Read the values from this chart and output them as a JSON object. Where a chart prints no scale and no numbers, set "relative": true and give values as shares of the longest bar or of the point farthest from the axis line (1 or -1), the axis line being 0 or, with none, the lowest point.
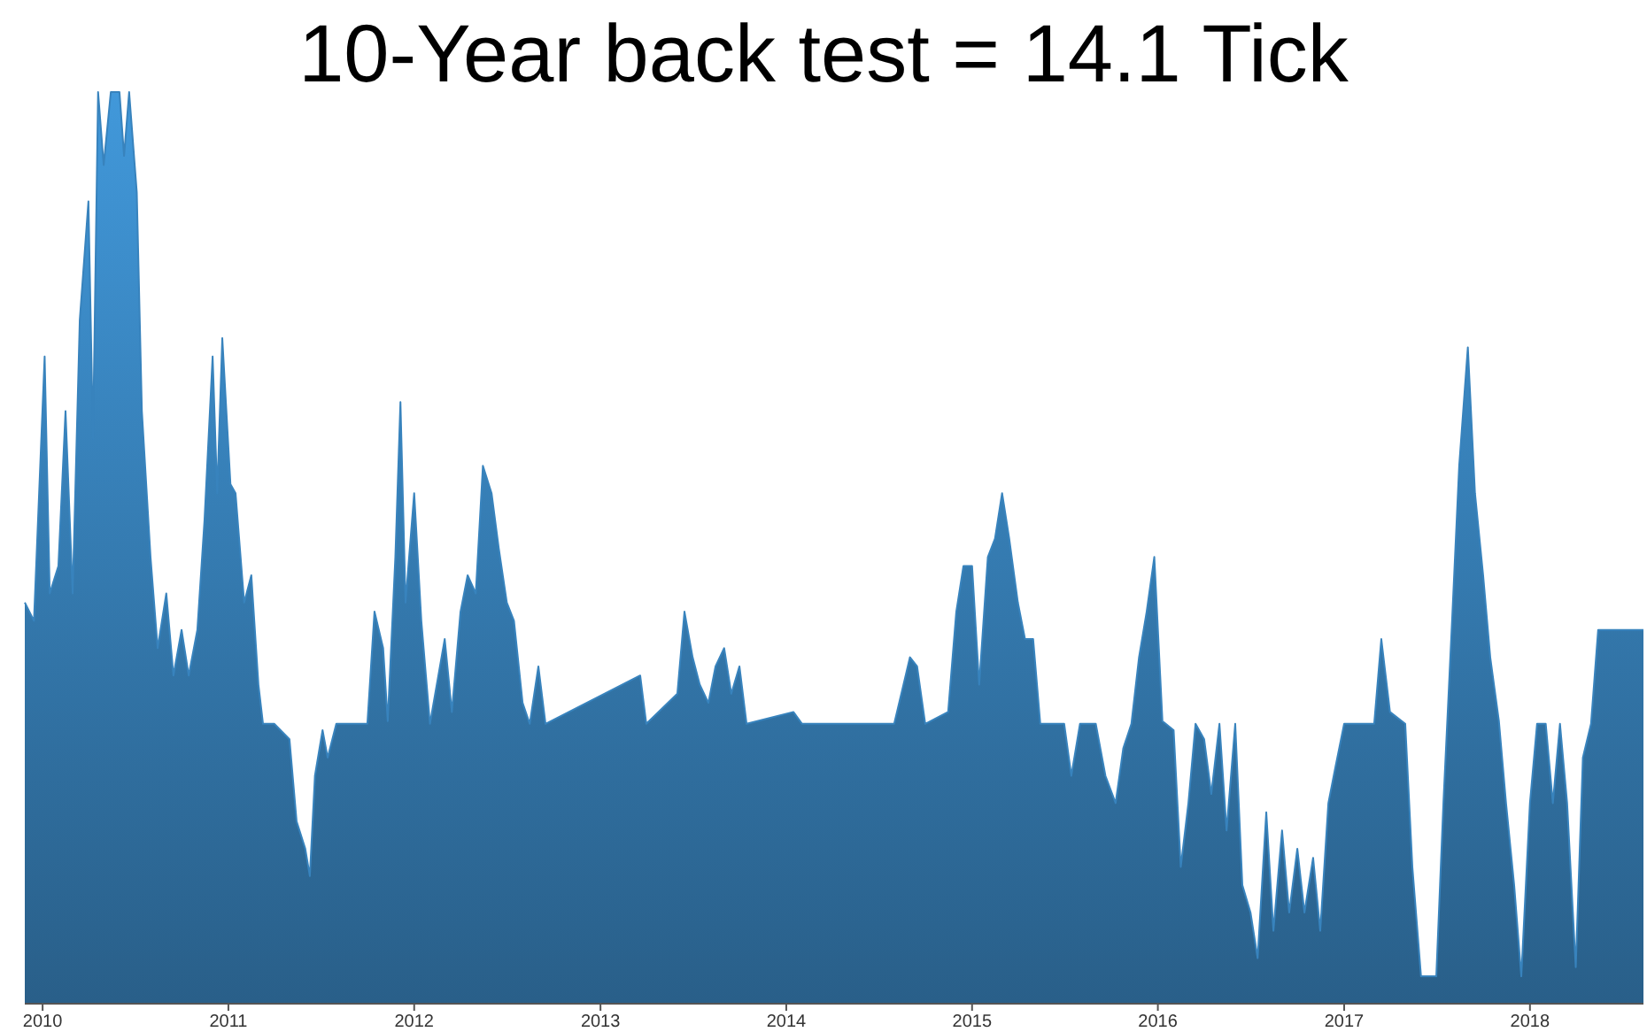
{
  "chart_data": {
    "type": "area",
    "title": "10-Year back test = 14.1 Tick",
    "relative": true,
    "xlim": [
      "2009-11-27",
      "2018-08-12"
    ],
    "xticks": [
      "2010",
      "2011",
      "2012",
      "2013",
      "2014",
      "2015",
      "2016",
      "2017",
      "2018"
    ],
    "series": [
      {
        "color": "#2f6e9e",
        "x": [
          "2009-11-27",
          "2009-12-15",
          "2010-01-05",
          "2010-01-15",
          "2010-02-01",
          "2010-02-15",
          "2010-03-01",
          "2010-03-15",
          "2010-04-01",
          "2010-04-10",
          "2010-04-20",
          "2010-05-01",
          "2010-05-15",
          "2010-06-01",
          "2010-06-10",
          "2010-06-20",
          "2010-07-05",
          "2010-07-15",
          "2010-08-01",
          "2010-08-15",
          "2010-09-01",
          "2010-09-15",
          "2010-10-01",
          "2010-10-15",
          "2010-11-01",
          "2010-11-15",
          "2010-12-01",
          "2010-12-10",
          "2010-12-20",
          "2011-01-05",
          "2011-01-15",
          "2011-02-01",
          "2011-02-15",
          "2011-03-01",
          "2011-03-10",
          "2011-04-01",
          "2011-05-01",
          "2011-05-15",
          "2011-06-01",
          "2011-06-10",
          "2011-06-20",
          "2011-07-05",
          "2011-07-15",
          "2011-08-01",
          "2011-09-01",
          "2011-10-01",
          "2011-10-15",
          "2011-11-01",
          "2011-11-10",
          "2011-11-25",
          "2011-12-05",
          "2011-12-15",
          "2012-01-01",
          "2012-01-15",
          "2012-02-01",
          "2012-03-01",
          "2012-03-15",
          "2012-04-01",
          "2012-04-15",
          "2012-05-01",
          "2012-05-15",
          "2012-06-01",
          "2012-06-15",
          "2012-07-01",
          "2012-07-15",
          "2012-08-01",
          "2012-08-15",
          "2012-09-01",
          "2012-09-15",
          "2013-03-20",
          "2013-04-01",
          "2013-06-01",
          "2013-06-15",
          "2013-07-01",
          "2013-07-15",
          "2013-08-01",
          "2013-08-15",
          "2013-09-01",
          "2013-09-15",
          "2013-10-01",
          "2013-10-15",
          "2014-01-15",
          "2014-02-01",
          "2014-08-01",
          "2014-09-01",
          "2014-09-15",
          "2014-10-01",
          "2014-11-15",
          "2014-12-01",
          "2014-12-15",
          "2015-01-01",
          "2015-01-15",
          "2015-02-01",
          "2015-02-15",
          "2015-03-01",
          "2015-03-15",
          "2015-04-01",
          "2015-04-15",
          "2015-05-01",
          "2015-05-15",
          "2015-07-01",
          "2015-07-15",
          "2015-08-01",
          "2015-09-01",
          "2015-09-20",
          "2015-10-10",
          "2015-10-25",
          "2015-11-10",
          "2015-11-25",
          "2015-12-10",
          "2015-12-25",
          "2016-01-10",
          "2016-02-01",
          "2016-02-15",
          "2016-03-01",
          "2016-03-15",
          "2016-04-01",
          "2016-04-15",
          "2016-05-01",
          "2016-05-15",
          "2016-06-01",
          "2016-06-15",
          "2016-07-01",
          "2016-07-15",
          "2016-08-01",
          "2016-08-15",
          "2016-09-01",
          "2016-09-15",
          "2016-10-01",
          "2016-10-15",
          "2016-11-01",
          "2016-11-15",
          "2016-12-01",
          "2016-12-15",
          "2017-01-01",
          "2017-03-01",
          "2017-03-15",
          "2017-04-01",
          "2017-05-01",
          "2017-05-15",
          "2017-06-01",
          "2017-07-01",
          "2017-07-15",
          "2017-08-01",
          "2017-08-15",
          "2017-09-01",
          "2017-09-15",
          "2017-10-01",
          "2017-10-15",
          "2017-11-01",
          "2017-11-15",
          "2017-12-01",
          "2017-12-15",
          "2018-01-01",
          "2018-01-15",
          "2018-02-01",
          "2018-02-15",
          "2018-03-01",
          "2018-03-15",
          "2018-04-01",
          "2018-04-15",
          "2018-05-01",
          "2018-05-15",
          "2018-06-01",
          "2018-08-12"
        ],
        "values": [
          0.44,
          0.42,
          0.71,
          0.45,
          0.48,
          0.65,
          0.45,
          0.75,
          0.88,
          0.62,
          1,
          0.92,
          1,
          1,
          0.93,
          1,
          0.89,
          0.65,
          0.49,
          0.39,
          0.45,
          0.36,
          0.41,
          0.36,
          0.41,
          0.53,
          0.71,
          0.56,
          0.73,
          0.57,
          0.56,
          0.44,
          0.47,
          0.35,
          0.307,
          0.307,
          0.29,
          0.2,
          0.17,
          0.14,
          0.25,
          0.3,
          0.27,
          0.307,
          0.307,
          0.307,
          0.43,
          0.39,
          0.31,
          0.49,
          0.66,
          0.44,
          0.56,
          0.42,
          0.307,
          0.4,
          0.32,
          0.43,
          0.47,
          0.45,
          0.59,
          0.56,
          0.5,
          0.44,
          0.42,
          0.33,
          0.307,
          0.37,
          0.307,
          0.36,
          0.307,
          0.34,
          0.43,
          0.38,
          0.35,
          0.33,
          0.37,
          0.39,
          0.34,
          0.37,
          0.307,
          0.32,
          0.307,
          0.307,
          0.38,
          0.37,
          0.307,
          0.32,
          0.43,
          0.48,
          0.48,
          0.35,
          0.49,
          0.51,
          0.56,
          0.51,
          0.44,
          0.4,
          0.4,
          0.307,
          0.307,
          0.25,
          0.307,
          0.307,
          0.25,
          0.22,
          0.28,
          0.307,
          0.38,
          0.43,
          0.49,
          0.31,
          0.3,
          0.15,
          0.22,
          0.307,
          0.29,
          0.23,
          0.307,
          0.19,
          0.307,
          0.13,
          0.1,
          0.05,
          0.21,
          0.08,
          0.19,
          0.1,
          0.17,
          0.1,
          0.16,
          0.08,
          0.22,
          0.26,
          0.307,
          0.307,
          0.4,
          0.32,
          0.307,
          0.15,
          0.03,
          0.03,
          0.22,
          0.42,
          0.59,
          0.72,
          0.56,
          0.47,
          0.38,
          0.31,
          0.22,
          0.13,
          0.03,
          0.22,
          0.307,
          0.307,
          0.22,
          0.307,
          0.22,
          0.04,
          0.27,
          0.307,
          0.41,
          0.41,
          0.41
        ]
      }
    ]
  }
}
